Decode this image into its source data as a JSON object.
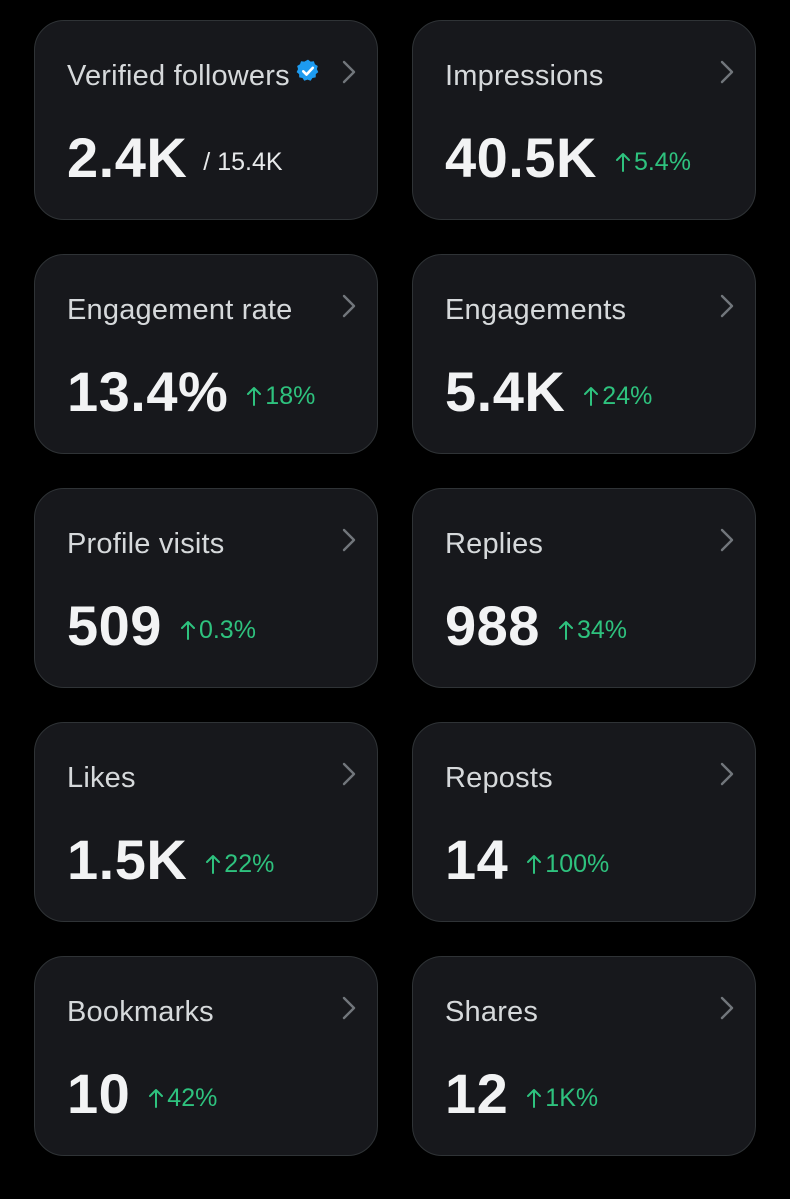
{
  "colors": {
    "background": "#000000",
    "card": "#17181c",
    "card_border": "#2f3336",
    "title_text": "#d6d9db",
    "value_text": "#f2f3f4",
    "positive_delta": "#2ec27e",
    "verified_badge": "#1d9bf0"
  },
  "icons": {
    "chevron": "chevron-right-icon",
    "delta": "arrow-up-icon",
    "verified": "verified-badge-icon"
  },
  "cards": [
    {
      "title": "Verified followers",
      "value": "2.4K",
      "total": "/ 15.4K",
      "verified": true
    },
    {
      "title": "Impressions",
      "value": "40.5K",
      "delta": "5.4%"
    },
    {
      "title": "Engagement rate",
      "value": "13.4%",
      "delta": "18%"
    },
    {
      "title": "Engagements",
      "value": "5.4K",
      "delta": "24%"
    },
    {
      "title": "Profile visits",
      "value": "509",
      "delta": "0.3%"
    },
    {
      "title": "Replies",
      "value": "988",
      "delta": "34%"
    },
    {
      "title": "Likes",
      "value": "1.5K",
      "delta": "22%"
    },
    {
      "title": "Reposts",
      "value": "14",
      "delta": "100%"
    },
    {
      "title": "Bookmarks",
      "value": "10",
      "delta": "42%"
    },
    {
      "title": "Shares",
      "value": "12",
      "delta": "1K%"
    }
  ]
}
